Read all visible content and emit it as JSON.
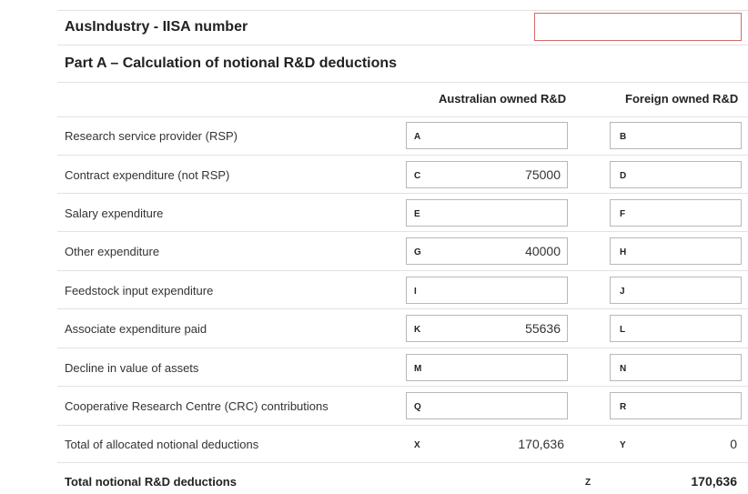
{
  "iisa": {
    "label": "AusIndustry - IISA number",
    "value": ""
  },
  "part_a": {
    "title": "Part A – Calculation of notional R&D deductions",
    "col_australian": "Australian owned R&D",
    "col_foreign": "Foreign owned R&D",
    "rows": [
      {
        "label": "Research service provider (RSP)",
        "aus_code": "A",
        "aus_value": "",
        "for_code": "B",
        "for_value": ""
      },
      {
        "label": "Contract expenditure (not RSP)",
        "aus_code": "C",
        "aus_value": "75000",
        "for_code": "D",
        "for_value": ""
      },
      {
        "label": "Salary expenditure",
        "aus_code": "E",
        "aus_value": "",
        "for_code": "F",
        "for_value": ""
      },
      {
        "label": "Other expenditure",
        "aus_code": "G",
        "aus_value": "40000",
        "for_code": "H",
        "for_value": ""
      },
      {
        "label": "Feedstock input expenditure",
        "aus_code": "I",
        "aus_value": "",
        "for_code": "J",
        "for_value": ""
      },
      {
        "label": "Associate expenditure paid",
        "aus_code": "K",
        "aus_value": "55636",
        "for_code": "L",
        "for_value": ""
      },
      {
        "label": "Decline in value of assets",
        "aus_code": "M",
        "aus_value": "",
        "for_code": "N",
        "for_value": ""
      },
      {
        "label": "Cooperative Research Centre (CRC) contributions",
        "aus_code": "Q",
        "aus_value": "",
        "for_code": "R",
        "for_value": ""
      }
    ],
    "total_allocated": {
      "label": "Total of allocated notional deductions",
      "aus_code": "X",
      "aus_value": "170,636",
      "for_code": "Y",
      "for_value": "0"
    },
    "total_notional": {
      "label": "Total notional R&D deductions",
      "code": "Z",
      "value": "170,636"
    }
  }
}
